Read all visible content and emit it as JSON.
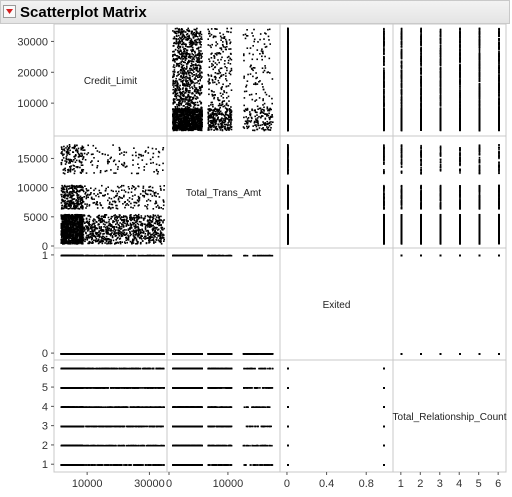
{
  "report": {
    "title": "Scatterplot Matrix"
  },
  "chart_data": {
    "type": "scatter",
    "variables": [
      {
        "name": "Credit_Limit",
        "range": [
          0,
          35000
        ],
        "ticks": [
          10000,
          20000,
          30000
        ],
        "xticks": [
          10000,
          30000
        ]
      },
      {
        "name": "Total_Trans_Amt",
        "range": [
          0,
          18500
        ],
        "ticks": [
          0,
          5000,
          10000,
          15000
        ],
        "xticks": [
          0,
          10000
        ]
      },
      {
        "name": "Exited",
        "range": [
          -0.05,
          1.05
        ],
        "ticks": [
          0,
          1
        ],
        "xticks": [
          0,
          0.4,
          0.8
        ]
      },
      {
        "name": "Total_Relationship_Count",
        "range": [
          0.7,
          6.3
        ],
        "ticks": [
          1,
          2,
          3,
          4,
          5,
          6
        ],
        "xticks": [
          1,
          2,
          3,
          4,
          5,
          6
        ]
      }
    ],
    "tick_labels": {
      "Credit_Limit": [
        "10000",
        "20000",
        "30000"
      ],
      "Credit_Limit_x": [
        "10000",
        "30000"
      ],
      "Total_Trans_Amt": [
        "0",
        "5000",
        "10000",
        "15000"
      ],
      "Total_Trans_Amt_x": [
        "0",
        "10000"
      ],
      "Exited": [
        "0",
        "1"
      ],
      "Exited_x": [
        "0",
        "0.4",
        "0.8"
      ],
      "Total_Relationship_Count": [
        "1",
        "2",
        "3",
        "4",
        "5",
        "6"
      ],
      "Total_Relationship_Count_x": [
        "1",
        "2",
        "3",
        "4",
        "5",
        "6"
      ]
    },
    "cluster_summary": {
      "credit_limit_x_trans_amt": [
        {
          "credit_from": 1400,
          "credit_to": 34500,
          "amt_from": 500,
          "amt_to": 5500,
          "density": "high"
        },
        {
          "credit_from": 1400,
          "credit_to": 34500,
          "amt_from": 6500,
          "amt_to": 10500,
          "density": "medium"
        },
        {
          "credit_from": 1400,
          "credit_to": 34500,
          "amt_from": 12500,
          "amt_to": 17500,
          "density": "low"
        }
      ],
      "relationship_count_levels": [
        1,
        2,
        3,
        4,
        5,
        6
      ],
      "exited_levels": [
        0,
        1
      ]
    },
    "grid": false,
    "legend": "none",
    "colors": {
      "points": "#000000",
      "frame": "#c8c8c8",
      "axis_text": "#333333"
    }
  }
}
